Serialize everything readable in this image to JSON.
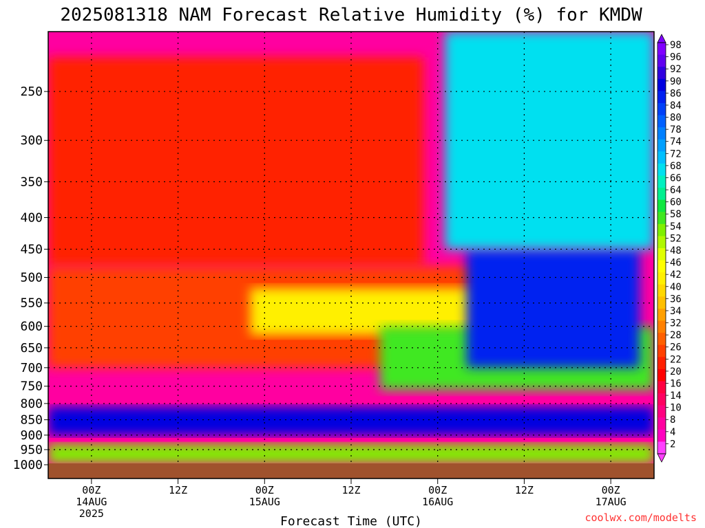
{
  "chart_data": {
    "type": "heatmap",
    "title": "2025081318 NAM Forecast Relative Humidity (%) for KMDW",
    "xlabel": "Forecast Time (UTC)",
    "ylabel": "",
    "x_ticks": [
      {
        "hour": 6,
        "lines": [
          "00Z",
          "14AUG",
          "2025"
        ]
      },
      {
        "hour": 18,
        "lines": [
          "12Z"
        ]
      },
      {
        "hour": 30,
        "lines": [
          "00Z",
          "15AUG"
        ]
      },
      {
        "hour": 42,
        "lines": [
          "12Z"
        ]
      },
      {
        "hour": 54,
        "lines": [
          "00Z",
          "16AUG"
        ]
      },
      {
        "hour": 66,
        "lines": [
          "12Z"
        ]
      },
      {
        "hour": 78,
        "lines": [
          "00Z",
          "17AUG"
        ]
      }
    ],
    "xlim": [
      0,
      84
    ],
    "y_levels": [
      250,
      300,
      350,
      400,
      450,
      500,
      550,
      600,
      650,
      700,
      750,
      800,
      850,
      900,
      950,
      1000
    ],
    "ylim": [
      200,
      1000
    ],
    "y_scale": "log-pressure",
    "grid": true,
    "colorbar": {
      "labels": [
        "98",
        "96",
        "92",
        "90",
        "86",
        "84",
        "80",
        "78",
        "74",
        "72",
        "68",
        "66",
        "64",
        "60",
        "58",
        "54",
        "52",
        "48",
        "46",
        "42",
        "40",
        "36",
        "34",
        "32",
        "28",
        "26",
        "22",
        "20",
        "16",
        "14",
        "10",
        "8",
        "4",
        "2"
      ],
      "colors": [
        "#8000ff",
        "#6000f0",
        "#3000e0",
        "#0000e0",
        "#0020f0",
        "#0040f8",
        "#0060ff",
        "#0080ff",
        "#00a0ff",
        "#00c0ff",
        "#00e0f0",
        "#00f0c0",
        "#00f090",
        "#10e840",
        "#40e820",
        "#80f000",
        "#b0f800",
        "#e0ff00",
        "#ffff00",
        "#fff000",
        "#ffd800",
        "#ffc000",
        "#ffa000",
        "#ff8000",
        "#ff6000",
        "#ff4000",
        "#ff2000",
        "#ff0000",
        "#ff0040",
        "#ff0060",
        "#ff0080",
        "#ff00a0",
        "#ff00c0",
        "#ff40ff"
      ]
    },
    "layers": [
      {
        "name": "upper-pink",
        "t0": 0,
        "t1": 84,
        "p0": 200,
        "p1": 1000,
        "rh": 6
      },
      {
        "name": "upper-red",
        "t0": 0,
        "t1": 52,
        "p0": 220,
        "p1": 480,
        "rh": 22
      },
      {
        "name": "mid-red-band",
        "t0": 0,
        "t1": 60,
        "p0": 480,
        "p1": 700,
        "rh": 24
      },
      {
        "name": "mid-yellow",
        "t0": 28,
        "t1": 60,
        "p0": 520,
        "p1": 620,
        "rh": 42
      },
      {
        "name": "mid-green",
        "t0": 46,
        "t1": 84,
        "p0": 600,
        "p1": 760,
        "rh": 56
      },
      {
        "name": "mid-moist-blue",
        "t0": 58,
        "t1": 82,
        "p0": 450,
        "p1": 700,
        "rh": 86
      },
      {
        "name": "upper-cyan",
        "t0": 55,
        "t1": 84,
        "p0": 200,
        "p1": 450,
        "rh": 68
      },
      {
        "name": "boundary-blue",
        "t0": 0,
        "t1": 84,
        "p0": 810,
        "p1": 900,
        "rh": 90
      },
      {
        "name": "surface-green",
        "t0": 0,
        "t1": 84,
        "p0": 930,
        "p1": 1000,
        "rh": 54
      }
    ],
    "surface_pressure": 985
  },
  "credit": "coolwx.com/modelts"
}
